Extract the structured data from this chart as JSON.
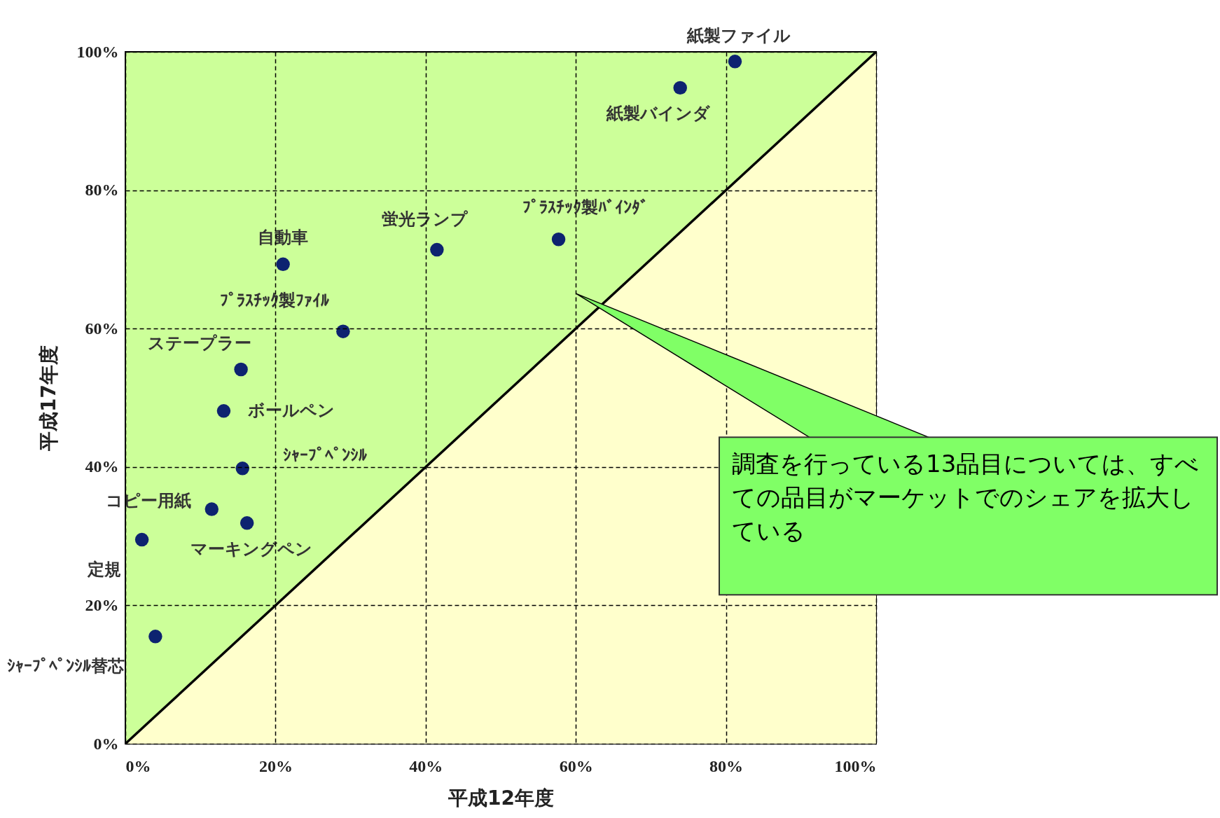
{
  "chart_data": {
    "type": "scatter",
    "xlabel": "平成12年度",
    "ylabel": "平成17年度",
    "xlim": [
      0,
      100
    ],
    "ylim": [
      0,
      100
    ],
    "xticks": [
      {
        "value": 0,
        "label": "0%"
      },
      {
        "value": 20,
        "label": "20%"
      },
      {
        "value": 40,
        "label": "40%"
      },
      {
        "value": 60,
        "label": "60%"
      },
      {
        "value": 80,
        "label": "80%"
      },
      {
        "value": 100,
        "label": "100%"
      }
    ],
    "yticks": [
      {
        "value": 0,
        "label": "0%"
      },
      {
        "value": 20,
        "label": "20%"
      },
      {
        "value": 40,
        "label": "40%"
      },
      {
        "value": 60,
        "label": "60%"
      },
      {
        "value": 80,
        "label": "80%"
      },
      {
        "value": 100,
        "label": "100%"
      }
    ],
    "grid": true,
    "series": [
      {
        "type": "area",
        "color": "#ffffcc",
        "x": [
          0,
          100
        ],
        "values": [
          0,
          100
        ]
      },
      {
        "type": "scatter",
        "marker": "circle",
        "color": "#0d2370",
        "x": [
          81.2,
          73.9,
          57.7,
          41.5,
          21.0,
          29.0,
          15.4,
          13.1,
          15.6,
          11.5,
          16.2,
          2.2,
          4.0
        ],
        "values": [
          98.6,
          94.8,
          72.9,
          71.4,
          69.3,
          59.6,
          54.1,
          48.1,
          39.8,
          33.9,
          31.9,
          29.5,
          15.5
        ]
      }
    ],
    "annotations": [
      {
        "text": "紙製ファイル",
        "x": 81.2,
        "y": 98.6
      },
      {
        "text": "紙製バインダ",
        "x": 73.9,
        "y": 94.8
      },
      {
        "text": "ﾌﾟﾗｽﾁｯｸ製ﾊﾞｲﾝﾀﾞ",
        "x": 57.7,
        "y": 72.9
      },
      {
        "text": "蛍光ランプ",
        "x": 41.5,
        "y": 71.4
      },
      {
        "text": "自動車",
        "x": 21.0,
        "y": 69.3
      },
      {
        "text": "ﾌﾟﾗｽﾁｯｸ製ﾌｧｲﾙ",
        "x": 29.0,
        "y": 59.6
      },
      {
        "text": "ステープラー",
        "x": 15.4,
        "y": 54.1
      },
      {
        "text": "ボールペン",
        "x": 13.1,
        "y": 48.1
      },
      {
        "text": "ｼｬｰﾌﾟﾍﾟﾝｼﾙ",
        "x": 15.6,
        "y": 39.8
      },
      {
        "text": "コピー用紙",
        "x": 11.5,
        "y": 33.9
      },
      {
        "text": "マーキングペン",
        "x": 16.2,
        "y": 31.9
      },
      {
        "text": "定規",
        "x": 2.2,
        "y": 29.5
      },
      {
        "text": "ｼｬｰﾌﾟﾍﾟﾝｼﾙ替芯",
        "x": 4.0,
        "y": 15.5
      },
      "調査を行っている13品目については、すべての品目がマーケットでのシェアを拡大している"
    ]
  }
}
